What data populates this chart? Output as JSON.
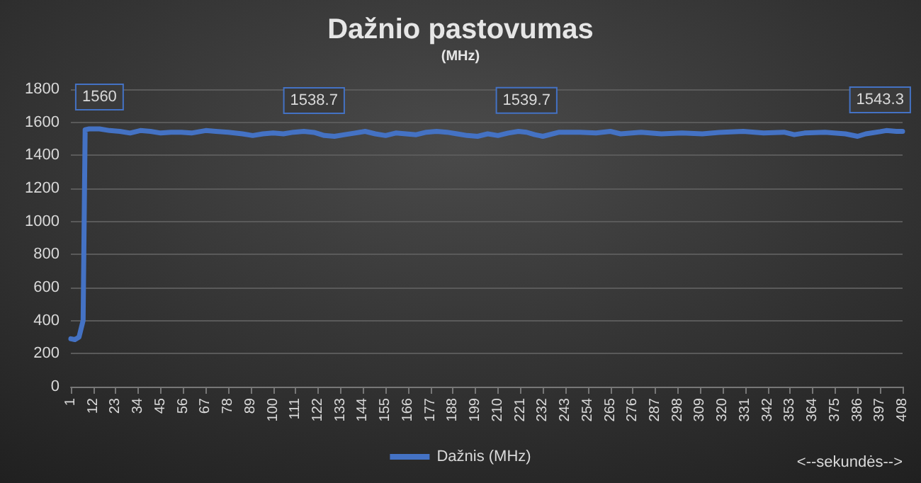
{
  "chart_data": {
    "type": "line",
    "title": "Dažnio pastovumas",
    "subtitle": "(MHz)",
    "xlabel": "<--sekundės-->",
    "xlim": [
      1,
      408
    ],
    "xticks": [
      1,
      12,
      23,
      34,
      45,
      56,
      67,
      78,
      89,
      100,
      111,
      122,
      133,
      144,
      155,
      166,
      177,
      188,
      199,
      210,
      221,
      232,
      243,
      254,
      265,
      276,
      287,
      298,
      309,
      320,
      331,
      342,
      353,
      364,
      375,
      386,
      397,
      408
    ],
    "ylim": [
      0,
      1800
    ],
    "yticks": [
      0,
      200,
      400,
      600,
      800,
      1000,
      1200,
      1400,
      1600,
      1800
    ],
    "grid": "y",
    "legend": "bottom",
    "marker": "none",
    "line_style": "solid",
    "series": [
      {
        "name": "Dažnis (MHz)",
        "color": "#4472c4",
        "x": [
          1,
          3,
          5,
          7,
          8,
          10,
          15,
          20,
          25,
          30,
          35,
          40,
          45,
          50,
          55,
          60,
          67,
          72,
          78,
          85,
          90,
          95,
          100,
          105,
          110,
          115,
          120,
          125,
          130,
          135,
          140,
          145,
          150,
          155,
          160,
          165,
          170,
          175,
          180,
          185,
          190,
          195,
          200,
          205,
          210,
          215,
          220,
          224,
          228,
          232,
          240,
          250,
          258,
          265,
          270,
          280,
          290,
          300,
          310,
          320,
          330,
          340,
          350,
          355,
          360,
          370,
          380,
          386,
          390,
          397,
          400,
          405,
          408
        ],
        "values": [
          290,
          285,
          300,
          400,
          1555,
          1560,
          1560,
          1550,
          1545,
          1535,
          1550,
          1545,
          1535,
          1540,
          1540,
          1535,
          1550,
          1545,
          1540,
          1530,
          1520,
          1530,
          1535,
          1530,
          1540,
          1545,
          1538.7,
          1520,
          1515,
          1525,
          1535,
          1545,
          1530,
          1520,
          1535,
          1530,
          1525,
          1540,
          1545,
          1540,
          1530,
          1520,
          1515,
          1530,
          1520,
          1535,
          1545,
          1539.7,
          1525,
          1515,
          1540,
          1540,
          1535,
          1545,
          1530,
          1540,
          1530,
          1535,
          1530,
          1540,
          1545,
          1535,
          1540,
          1525,
          1535,
          1540,
          1530,
          1515,
          1530,
          1543.3,
          1550,
          1545,
          1545
        ],
        "value_labels": [
          null,
          null,
          null,
          null,
          null,
          null,
          "1560",
          null,
          null,
          null,
          null,
          null,
          null,
          null,
          null,
          null,
          null,
          null,
          null,
          null,
          null,
          null,
          null,
          null,
          null,
          null,
          "1538.7",
          null,
          null,
          null,
          null,
          null,
          null,
          null,
          null,
          null,
          null,
          null,
          null,
          null,
          null,
          null,
          null,
          null,
          null,
          null,
          null,
          "1539.7",
          null,
          null,
          null,
          null,
          null,
          null,
          null,
          null,
          null,
          null,
          null,
          null,
          null,
          null,
          null,
          null,
          null,
          null,
          null,
          null,
          null,
          "1543.3",
          null,
          null,
          null
        ]
      }
    ]
  }
}
